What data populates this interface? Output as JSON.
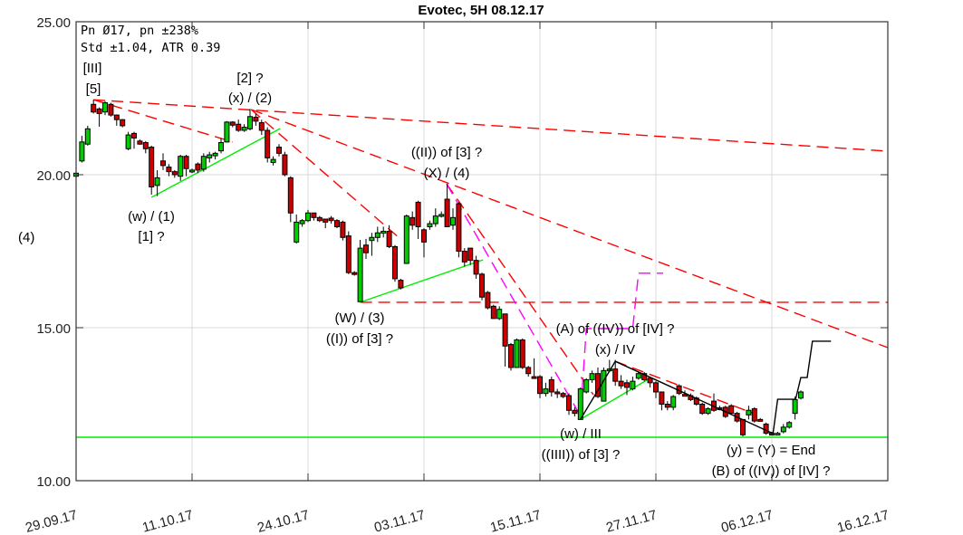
{
  "chart_data": {
    "type": "candlestick",
    "title": "Evotec, 5H 08.12.17",
    "ylim": [
      10,
      25
    ],
    "yticks": [
      "25.00",
      "20.00",
      "15.00",
      "10.00"
    ],
    "ytick_values": [
      25,
      20,
      15,
      10
    ],
    "xticks": [
      "29.09.17",
      "11.10.17",
      "24.10.17",
      "03.11.17",
      "15.11.17",
      "27.11.17",
      "06.12.17",
      "16.12.17"
    ],
    "bars_per_xtick": 20,
    "xlim_bars": [
      0,
      140
    ],
    "grid": true,
    "colors": {
      "up": "#00cc00",
      "down": "#cc0000",
      "trend_dashed": "#ff0000",
      "projection": "#ff00ff",
      "support": "#00ee00",
      "path": "#000000"
    },
    "stats_lines": [
      "Pn  Ø17, pn ±238%",
      "Std ±1.04, ATR 0.39"
    ],
    "side_label": "(4)",
    "candles_ohlc": [
      [
        19.95,
        20.05,
        19.9,
        20.05
      ],
      [
        20.45,
        21.27,
        20.4,
        21.07
      ],
      [
        21.0,
        21.6,
        20.95,
        21.5
      ],
      [
        22.3,
        22.45,
        22.0,
        22.05
      ],
      [
        22.15,
        22.2,
        21.57,
        22.0
      ],
      [
        22.05,
        22.4,
        21.95,
        22.35
      ],
      [
        22.3,
        22.35,
        21.9,
        21.95
      ],
      [
        21.95,
        21.97,
        21.6,
        21.8
      ],
      [
        21.8,
        21.82,
        21.55,
        21.6
      ],
      [
        20.85,
        21.4,
        20.8,
        21.3
      ],
      [
        21.35,
        21.4,
        20.85,
        21.2
      ],
      [
        21.1,
        21.15,
        20.98,
        21.0
      ],
      [
        21.05,
        21.1,
        20.7,
        20.85
      ],
      [
        20.9,
        20.95,
        19.35,
        19.6
      ],
      [
        19.65,
        20.15,
        19.3,
        19.9
      ],
      [
        20.45,
        20.7,
        20.15,
        20.3
      ],
      [
        20.25,
        20.35,
        19.95,
        20.1
      ],
      [
        20.1,
        20.15,
        19.9,
        20.0
      ],
      [
        19.95,
        20.65,
        19.8,
        20.6
      ],
      [
        20.6,
        20.65,
        19.95,
        20.2
      ],
      [
        20.1,
        20.2,
        20.05,
        20.15
      ],
      [
        20.35,
        20.4,
        20.05,
        20.15
      ],
      [
        20.18,
        20.7,
        20.1,
        20.6
      ],
      [
        20.55,
        20.75,
        20.4,
        20.65
      ],
      [
        20.62,
        20.75,
        20.5,
        20.7
      ],
      [
        20.78,
        21.2,
        20.7,
        21.05
      ],
      [
        21.07,
        21.75,
        21.05,
        21.72
      ],
      [
        21.72,
        21.75,
        21.55,
        21.62
      ],
      [
        21.65,
        21.8,
        21.4,
        21.45
      ],
      [
        21.45,
        21.65,
        21.4,
        21.55
      ],
      [
        21.5,
        22.15,
        21.45,
        21.9
      ],
      [
        21.88,
        22.0,
        21.6,
        21.75
      ],
      [
        21.7,
        21.8,
        21.3,
        21.45
      ],
      [
        21.45,
        21.55,
        20.4,
        20.55
      ],
      [
        20.4,
        20.6,
        20.3,
        20.5
      ],
      [
        20.9,
        21.0,
        20.6,
        20.7
      ],
      [
        20.65,
        20.75,
        19.95,
        20.0
      ],
      [
        19.9,
        19.95,
        18.45,
        18.75
      ],
      [
        17.8,
        18.7,
        17.75,
        18.45
      ],
      [
        18.4,
        18.55,
        18.3,
        18.5
      ],
      [
        18.5,
        18.85,
        18.45,
        18.75
      ],
      [
        18.75,
        18.75,
        18.5,
        18.6
      ],
      [
        18.6,
        18.65,
        18.45,
        18.5
      ],
      [
        18.55,
        18.55,
        18.25,
        18.45
      ],
      [
        18.58,
        18.65,
        18.4,
        18.5
      ],
      [
        18.5,
        18.55,
        18.25,
        18.3
      ],
      [
        18.45,
        18.5,
        17.85,
        17.95
      ],
      [
        18.0,
        18.15,
        16.75,
        16.8
      ],
      [
        16.8,
        16.85,
        16.7,
        16.75
      ],
      [
        15.85,
        17.87,
        15.85,
        17.6
      ],
      [
        17.7,
        17.9,
        17.25,
        17.45
      ],
      [
        17.85,
        18.1,
        17.35,
        17.95
      ],
      [
        17.95,
        18.3,
        17.8,
        18.1
      ],
      [
        18.1,
        18.3,
        17.95,
        18.15
      ],
      [
        18.15,
        18.35,
        17.6,
        17.65
      ],
      [
        17.65,
        17.7,
        16.5,
        16.6
      ],
      [
        16.55,
        16.6,
        16.25,
        16.3
      ],
      [
        17.1,
        18.7,
        17.1,
        18.65
      ],
      [
        18.6,
        18.8,
        18.2,
        18.35
      ],
      [
        19.1,
        19.15,
        17.9,
        18.3
      ],
      [
        18.2,
        18.25,
        17.3,
        17.8
      ],
      [
        18.3,
        18.5,
        18.2,
        18.4
      ],
      [
        18.4,
        18.9,
        18.3,
        18.65
      ],
      [
        18.65,
        18.8,
        18.6,
        18.7
      ],
      [
        19.2,
        19.7,
        18.3,
        18.3
      ],
      [
        18.35,
        18.9,
        18.2,
        18.6
      ],
      [
        19.05,
        19.1,
        17.3,
        17.5
      ],
      [
        17.5,
        17.6,
        17.0,
        17.15
      ],
      [
        17.6,
        17.6,
        17.05,
        17.2
      ],
      [
        17.2,
        17.35,
        16.6,
        16.75
      ],
      [
        16.75,
        16.8,
        15.9,
        16.0
      ],
      [
        16.15,
        16.2,
        15.6,
        15.65
      ],
      [
        15.7,
        15.75,
        15.3,
        15.3
      ],
      [
        15.3,
        15.7,
        15.25,
        15.6
      ],
      [
        15.45,
        15.45,
        13.73,
        14.4
      ],
      [
        14.45,
        14.5,
        13.6,
        13.7
      ],
      [
        13.7,
        14.65,
        13.7,
        14.6
      ],
      [
        14.6,
        14.65,
        13.65,
        13.7
      ],
      [
        13.7,
        13.75,
        13.4,
        13.5
      ],
      [
        13.4,
        14.0,
        13.35,
        13.37
      ],
      [
        13.4,
        13.45,
        12.7,
        12.85
      ],
      [
        12.85,
        13.2,
        12.75,
        13.0
      ],
      [
        13.3,
        13.4,
        12.75,
        12.9
      ],
      [
        12.9,
        13.0,
        12.7,
        12.85
      ],
      [
        12.85,
        12.9,
        12.7,
        12.75
      ],
      [
        12.78,
        12.85,
        12.15,
        12.3
      ],
      [
        12.3,
        12.4,
        12.1,
        12.2
      ],
      [
        12.0,
        13.05,
        12.0,
        13.0
      ],
      [
        12.9,
        13.35,
        12.85,
        13.3
      ],
      [
        13.3,
        13.6,
        13.2,
        13.5
      ],
      [
        13.5,
        13.7,
        12.7,
        12.75
      ],
      [
        12.6,
        13.7,
        12.6,
        13.6
      ],
      [
        13.6,
        13.95,
        13.55,
        13.65
      ],
      [
        13.65,
        13.95,
        13.1,
        13.25
      ],
      [
        13.25,
        13.45,
        13.0,
        13.1
      ],
      [
        13.2,
        13.3,
        12.8,
        13.05
      ],
      [
        13.0,
        13.4,
        12.95,
        13.25
      ],
      [
        13.35,
        13.55,
        13.3,
        13.5
      ],
      [
        13.5,
        13.55,
        13.25,
        13.3
      ],
      [
        13.35,
        13.4,
        13.05,
        13.2
      ],
      [
        13.2,
        13.25,
        12.7,
        12.9
      ],
      [
        12.9,
        12.9,
        12.3,
        12.5
      ],
      [
        12.5,
        12.6,
        12.3,
        12.4
      ],
      [
        12.4,
        12.8,
        12.3,
        12.75
      ],
      [
        13.1,
        13.15,
        12.8,
        12.85
      ],
      [
        12.82,
        12.95,
        12.75,
        12.8
      ],
      [
        12.78,
        12.85,
        12.6,
        12.65
      ],
      [
        12.7,
        12.75,
        12.45,
        12.5
      ],
      [
        12.5,
        12.55,
        12.15,
        12.2
      ],
      [
        12.2,
        12.4,
        12.15,
        12.35
      ],
      [
        12.6,
        12.85,
        12.25,
        12.3
      ],
      [
        12.38,
        12.45,
        12.3,
        12.35
      ],
      [
        12.4,
        12.45,
        12.05,
        12.1
      ],
      [
        12.45,
        12.5,
        12.15,
        12.2
      ],
      [
        12.2,
        12.25,
        11.9,
        11.95
      ],
      [
        12.0,
        12.0,
        11.45,
        11.5
      ],
      [
        12.15,
        12.45,
        12.0,
        12.3
      ],
      [
        12.35,
        12.4,
        11.9,
        11.95
      ],
      [
        12.0,
        12.05,
        11.95,
        11.98
      ],
      [
        11.85,
        11.9,
        11.5,
        11.55
      ],
      [
        11.55,
        11.6,
        11.5,
        11.52
      ],
      [
        11.55,
        11.6,
        11.5,
        11.55
      ],
      [
        11.6,
        11.85,
        11.55,
        11.75
      ],
      [
        11.75,
        11.95,
        11.7,
        11.9
      ],
      [
        12.2,
        12.75,
        12.0,
        12.65
      ],
      [
        12.7,
        12.95,
        12.65,
        12.9
      ]
    ],
    "lines": [
      {
        "style": "red-dashed",
        "points": [
          [
            3,
            22.45
          ],
          [
            140,
            20.77
          ]
        ]
      },
      {
        "style": "red-dashed",
        "points": [
          [
            3,
            22.45
          ],
          [
            27,
            21.07
          ]
        ]
      },
      {
        "style": "red-dashed",
        "points": [
          [
            30.2,
            22.13
          ],
          [
            140,
            14.35
          ]
        ]
      },
      {
        "style": "red-dashed",
        "points": [
          [
            30.2,
            22.13
          ],
          [
            55.6,
            17.96
          ]
        ]
      },
      {
        "style": "red-dashed",
        "points": [
          [
            63.9,
            19.7
          ],
          [
            89.2,
            12.81
          ]
        ]
      },
      {
        "style": "red-dashed",
        "points": [
          [
            49,
            15.83
          ],
          [
            140,
            15.83
          ]
        ]
      },
      {
        "style": "red-dashed",
        "points": [
          [
            93,
            13.9
          ],
          [
            117,
            12.19
          ]
        ]
      },
      {
        "style": "magenta-dashed",
        "points": [
          [
            63.9,
            19.7
          ],
          [
            86.6,
            12.25
          ]
        ]
      },
      {
        "style": "magenta-dashed",
        "points": [
          [
            87.3,
            12.99
          ],
          [
            88,
            14.97
          ],
          [
            96,
            14.97
          ],
          [
            97,
            16.78
          ],
          [
            101.25,
            16.78
          ]
        ]
      },
      {
        "style": "green",
        "points": [
          [
            13,
            19.26
          ],
          [
            35.2,
            21.51
          ]
        ]
      },
      {
        "style": "green",
        "points": [
          [
            49,
            15.83
          ],
          [
            70.2,
            17.22
          ]
        ]
      },
      {
        "style": "green",
        "points": [
          [
            87,
            12.01
          ],
          [
            98.9,
            13.34
          ]
        ]
      },
      {
        "style": "green",
        "points": [
          [
            0,
            11.42
          ],
          [
            140,
            11.42
          ]
        ]
      },
      {
        "style": "black",
        "points": [
          [
            87,
            12.01
          ],
          [
            93,
            13.9
          ],
          [
            120.2,
            11.54
          ]
        ]
      },
      {
        "style": "black",
        "points": [
          [
            120.2,
            11.54
          ],
          [
            121,
            12.66
          ],
          [
            124.1,
            12.66
          ],
          [
            125,
            13.37
          ],
          [
            126.1,
            13.37
          ],
          [
            127,
            14.56
          ],
          [
            130.2,
            14.56
          ]
        ]
      }
    ],
    "annotations": {
      "iii": "[III]",
      "five": "[5]",
      "two_q": "[2] ?",
      "x2": "(x) / (2)",
      "w1": "(w) / (1)",
      "one_q": "[1] ?",
      "ii_of3": "((II)) of [3] ?",
      "X4": "(X) / (4)",
      "W3": "(W) / (3)",
      "i_of3": "((I)) of [3] ?",
      "A_iv": "(A) of ((IV)) of [IV] ?",
      "x_iv": "(x) / IV",
      "w_iii": "(w) / III",
      "iiii_of3": "((IIII)) of [3] ?",
      "y_end": "(y) = (Y) = End",
      "B_iv": "(B) of ((IV)) of [IV] ?"
    }
  }
}
